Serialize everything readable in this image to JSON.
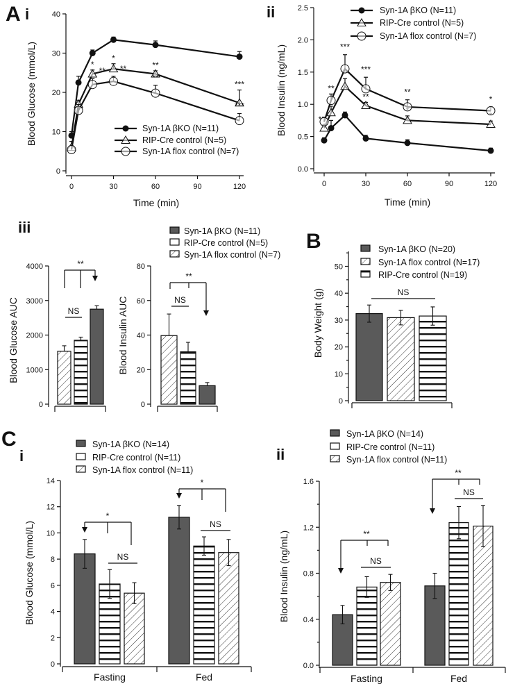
{
  "panels": {
    "A": "A",
    "Ai": "i",
    "Aii": "ii",
    "Aiii": "iii",
    "B": "B",
    "C": "C",
    "Ci": "i",
    "Cii": "ii"
  },
  "colors": {
    "ko": "#5a5a5a",
    "line": "#111111"
  },
  "chart_data": [
    {
      "id": "Ai",
      "type": "line",
      "xlabel": "Time (min)",
      "ylabel": "Blood Glucose (mmol/L)",
      "xlim": [
        0,
        120
      ],
      "ylim": [
        0,
        40
      ],
      "xticks": [
        0,
        30,
        60,
        90,
        120
      ],
      "yticks": [
        0,
        10,
        20,
        30,
        40
      ],
      "x": [
        0,
        5,
        15,
        30,
        60,
        120
      ],
      "series": [
        {
          "name": "Syn-1A βKO (N=11)",
          "marker": "filled-circle",
          "values": [
            9,
            22.5,
            30,
            33.4,
            32.1,
            29.1
          ],
          "err": [
            1,
            1.6,
            0.8,
            0.7,
            1,
            1.3
          ],
          "sig": [
            "",
            "",
            "",
            "",
            "",
            ""
          ]
        },
        {
          "name": "RIP-Cre control (N=5)",
          "marker": "triangle",
          "values": [
            6,
            17,
            24.7,
            26,
            24.7,
            17.3
          ],
          "err": [
            1.5,
            1,
            1,
            1.3,
            0.8,
            3.3
          ],
          "sig": [
            "",
            "",
            "*",
            "*",
            "**",
            "***"
          ]
        },
        {
          "name": "Syn-1A flox control (N=7)",
          "marker": "open-circle",
          "values": [
            5.4,
            15.4,
            22,
            22.8,
            19.8,
            12.8
          ],
          "err": [
            1,
            1.5,
            1.5,
            1.3,
            2,
            1.8
          ],
          "sig": [
            "",
            "",
            "**",
            "**",
            "**",
            "***"
          ]
        }
      ],
      "legend": "bottom-right"
    },
    {
      "id": "Aii",
      "type": "line",
      "xlabel": "Time (min)",
      "ylabel": "Blood Insulin  (ng/mL)",
      "xlim": [
        0,
        120
      ],
      "ylim": [
        0,
        2.5
      ],
      "xticks": [
        0,
        30,
        60,
        90,
        120
      ],
      "yticks": [
        "0.0",
        "0.5",
        "1.0",
        "1.5",
        "2.0",
        "2.5"
      ],
      "x": [
        0,
        5,
        15,
        30,
        60,
        120
      ],
      "series": [
        {
          "name": "Syn-1A βKO (N=11)",
          "marker": "filled-circle",
          "values": [
            0.44,
            0.63,
            0.83,
            0.47,
            0.4,
            0.28
          ],
          "err": [
            0.04,
            0.12,
            0.05,
            0.05,
            0.05,
            0.04
          ],
          "sig": [
            "",
            "",
            "",
            "",
            "",
            ""
          ]
        },
        {
          "name": "RIP-Cre control (N=5)",
          "marker": "triangle",
          "values": [
            0.63,
            0.87,
            1.28,
            0.98,
            0.75,
            0.69
          ],
          "err": [
            0.05,
            0.1,
            0.12,
            0.05,
            0.07,
            0.05
          ],
          "sig": [
            "*",
            "",
            "**",
            "**",
            "*",
            "*"
          ]
        },
        {
          "name": "Syn-1A flox control (N=7)",
          "marker": "open-circle",
          "values": [
            0.73,
            1.06,
            1.55,
            1.24,
            0.96,
            0.9
          ],
          "err": [
            0.07,
            0.1,
            0.22,
            0.18,
            0.11,
            0.06
          ],
          "sig": [
            "",
            "**",
            "***",
            "***",
            "**",
            "*"
          ]
        }
      ],
      "legend": "top-right"
    },
    {
      "id": "Aiii-glucose",
      "type": "bar",
      "ylabel": "Blood Glucose AUC",
      "ylim": [
        0,
        4000
      ],
      "yticks": [
        0,
        1000,
        2000,
        3000,
        4000
      ],
      "categories": [
        ""
      ],
      "series": [
        {
          "name": "Syn-1A flox control (N=7)",
          "pattern": "hatch",
          "values": [
            1530
          ],
          "err": [
            160
          ]
        },
        {
          "name": "RIP-Cre control (N=5)",
          "pattern": "stripes",
          "values": [
            1850
          ],
          "err": [
            90
          ]
        },
        {
          "name": "Syn-1A βKO (N=11)",
          "pattern": "solid",
          "values": [
            2750
          ],
          "err": [
            100
          ]
        }
      ],
      "annotations": [
        "**",
        "NS"
      ]
    },
    {
      "id": "Aiii-insulin",
      "type": "bar",
      "ylabel": "Blood Insulin AUC",
      "ylim": [
        0,
        80
      ],
      "yticks": [
        0,
        20,
        40,
        60,
        80
      ],
      "categories": [
        ""
      ],
      "series": [
        {
          "name": "Syn-1A flox control (N=7)",
          "pattern": "hatch",
          "values": [
            39.7
          ],
          "err": [
            12.5
          ]
        },
        {
          "name": "RIP-Cre control (N=5)",
          "pattern": "stripes",
          "values": [
            30.3
          ],
          "err": [
            5.5
          ]
        },
        {
          "name": "Syn-1A βKO (N=11)",
          "pattern": "solid",
          "values": [
            10.7
          ],
          "err": [
            1.8
          ]
        }
      ],
      "annotations": [
        "**",
        "NS"
      ],
      "legend": [
        {
          "label": "Syn-1A βKO (N=11)",
          "pattern": "solid"
        },
        {
          "label": "RIP-Cre control (N=5)",
          "pattern": "open"
        },
        {
          "label": "Syn-1A flox control (N=7)",
          "pattern": "hatch"
        }
      ]
    },
    {
      "id": "B",
      "type": "bar",
      "ylabel": "Body Weight (g)",
      "ylim": [
        0,
        55
      ],
      "yticks": [
        0,
        10,
        20,
        30,
        40,
        50
      ],
      "categories": [
        ""
      ],
      "series": [
        {
          "name": "Syn-1A βKO (N=20)",
          "pattern": "solid",
          "values": [
            32.4
          ],
          "err": [
            3.2
          ]
        },
        {
          "name": "Syn-1A flox control (N=17)",
          "pattern": "hatch",
          "values": [
            30.9
          ],
          "err": [
            2.7
          ]
        },
        {
          "name": "RIP-Cre control (N=19)",
          "pattern": "stripes",
          "values": [
            31.5
          ],
          "err": [
            3.4
          ]
        }
      ],
      "annotations": [
        "NS"
      ],
      "legend": [
        {
          "label": "Syn-1A βKO (N=20)",
          "pattern": "solid"
        },
        {
          "label": "Syn-1A flox control (N=17)",
          "pattern": "hatch"
        },
        {
          "label": "RIP-Cre control (N=19)",
          "pattern": "stripes"
        }
      ]
    },
    {
      "id": "Ci",
      "type": "bar",
      "ylabel": "Blood Glucose  (mmol/L)",
      "ylim": [
        0,
        14
      ],
      "yticks": [
        0,
        2,
        4,
        6,
        8,
        10,
        12,
        14
      ],
      "categories": [
        "Fasting",
        "Fed"
      ],
      "series": [
        {
          "name": "Syn-1A βKO (N=14)",
          "pattern": "solid",
          "values": [
            8.4,
            11.2
          ],
          "err": [
            1.1,
            0.9
          ]
        },
        {
          "name": "RIP-Cre control (N=11)",
          "pattern": "stripes",
          "values": [
            6.1,
            9.0
          ],
          "err": [
            1.1,
            0.7
          ]
        },
        {
          "name": "Syn-1A flox control (N=11)",
          "pattern": "hatch",
          "values": [
            5.4,
            8.5
          ],
          "err": [
            0.8,
            1.0
          ]
        }
      ],
      "annotations": [
        "*",
        "NS",
        "*",
        "NS"
      ],
      "legend": [
        {
          "label": "Syn-1A βKO (N=14)",
          "pattern": "solid"
        },
        {
          "label": "RIP-Cre control (N=11)",
          "pattern": "open"
        },
        {
          "label": "Syn-1A flox control (N=11)",
          "pattern": "hatch"
        }
      ]
    },
    {
      "id": "Cii",
      "type": "bar",
      "ylabel": "Blood Insulin  (ng/mL)",
      "ylim": [
        0,
        1.6
      ],
      "yticks": [
        "0.0",
        "0.4",
        "0.8",
        "1.2",
        "1.6"
      ],
      "categories": [
        "Fasting",
        "Fed"
      ],
      "series": [
        {
          "name": "Syn-1A βKO (N=14)",
          "pattern": "solid",
          "values": [
            0.44,
            0.69
          ],
          "err": [
            0.08,
            0.11
          ]
        },
        {
          "name": "RIP-Cre control (N=11)",
          "pattern": "stripes",
          "values": [
            0.68,
            1.24
          ],
          "err": [
            0.09,
            0.14
          ]
        },
        {
          "name": "Syn-1A flox control (N=11)",
          "pattern": "hatch",
          "values": [
            0.72,
            1.21
          ],
          "err": [
            0.07,
            0.18
          ]
        }
      ],
      "annotations": [
        "**",
        "NS",
        "**",
        "NS"
      ],
      "legend": [
        {
          "label": "Syn-1A βKO (N=14)",
          "pattern": "solid"
        },
        {
          "label": "RIP-Cre control (N=11)",
          "pattern": "open"
        },
        {
          "label": "Syn-1A flox control (N=11)",
          "pattern": "hatch"
        }
      ]
    }
  ]
}
